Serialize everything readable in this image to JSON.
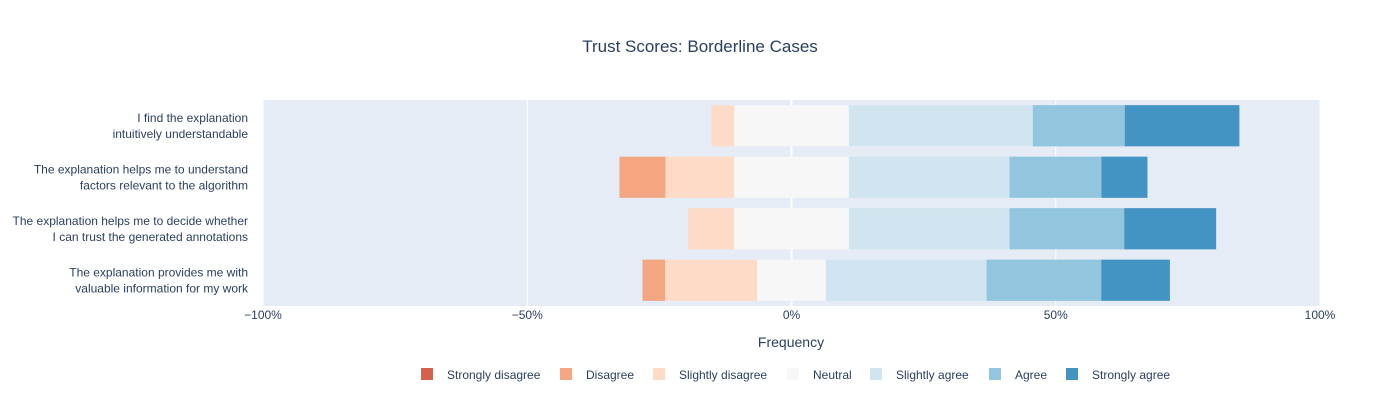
{
  "chart_data": {
    "type": "bar",
    "orientation": "horizontal",
    "barmode": "diverging-stacked",
    "title": "Trust Scores: Borderline Cases",
    "xlabel": "Frequency",
    "ylabel": "",
    "xlim": [
      -100,
      100
    ],
    "x_ticks": [
      -100,
      -50,
      0,
      50,
      100
    ],
    "x_tick_labels": [
      "−100%",
      "−50%",
      "0%",
      "50%",
      "100%"
    ],
    "grid": true,
    "legend_position": "bottom",
    "categories": [
      [
        "I find the explanation",
        "intuitively understandable"
      ],
      [
        "The explanation helps me to understand",
        "factors relevant to the algorithm"
      ],
      [
        "The explanation helps me to decide whether",
        "I can trust the generated annotations"
      ],
      [
        "The explanation provides me with",
        "valuable information for my work"
      ]
    ],
    "series": [
      {
        "name": "Strongly disagree",
        "color": "#d6604d",
        "values": [
          0,
          0,
          0,
          0
        ]
      },
      {
        "name": "Disagree",
        "color": "#f4a582",
        "values": [
          0,
          8.7,
          0,
          4.3
        ]
      },
      {
        "name": "Slightly disagree",
        "color": "#fddbc7",
        "values": [
          4.3,
          13,
          8.7,
          17.4
        ]
      },
      {
        "name": "Neutral",
        "color": "#f7f7f7",
        "values": [
          21.7,
          21.7,
          21.7,
          13
        ]
      },
      {
        "name": "Slightly agree",
        "color": "#d1e5f0",
        "values": [
          34.8,
          30.4,
          30.4,
          30.4
        ]
      },
      {
        "name": "Agree",
        "color": "#92c5de",
        "values": [
          17.4,
          17.4,
          21.7,
          21.7
        ]
      },
      {
        "name": "Strongly agree",
        "color": "#4393c3",
        "values": [
          21.7,
          8.7,
          17.4,
          13
        ]
      }
    ]
  }
}
